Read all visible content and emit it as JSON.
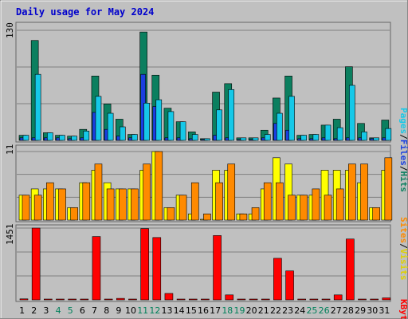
{
  "title": "Daily usage for May 2024",
  "colors": {
    "hits": "#0b7f5f",
    "files": "#1a3fe0",
    "pages": "#15c8e8",
    "visits": "#ffff00",
    "sites": "#ff8a00",
    "kbytes": "#ff0000",
    "weekend": "#00805a",
    "title": "#0000cc",
    "panel": "#c0c0c0"
  },
  "right_labels": {
    "top": {
      "pages": "Pages",
      "files": "Files",
      "hits": "Hits",
      "sep": "/"
    },
    "mid": {
      "sites": "Sites",
      "visits": "Visits",
      "sep": "/"
    },
    "bottom": {
      "kbytes": "KBytes"
    }
  },
  "chart_data": {
    "type": "bar",
    "title": "Daily usage for May 2024",
    "categories": [
      "1",
      "2",
      "3",
      "4",
      "5",
      "6",
      "7",
      "8",
      "9",
      "10",
      "11",
      "12",
      "13",
      "14",
      "15",
      "16",
      "17",
      "18",
      "19",
      "20",
      "21",
      "22",
      "23",
      "24",
      "25",
      "26",
      "27",
      "28",
      "29",
      "30",
      "31"
    ],
    "weekend_days": [
      "4",
      "5",
      "11",
      "12",
      "18",
      "19",
      "25",
      "26"
    ],
    "panels": [
      {
        "name": "hits-files-pages",
        "ymax_label": "130",
        "ylim": [
          0,
          130
        ],
        "grid": true,
        "series": [
          {
            "name": "Hits",
            "color_key": "hits",
            "values": [
              6,
              118,
              9,
              6,
              5,
              13,
              76,
              43,
              25,
              7,
              128,
              77,
              38,
              22,
              10,
              2,
              57,
              67,
              3,
              3,
              12,
              50,
              76,
              6,
              7,
              18,
              25,
              87,
              20,
              3,
              24
            ]
          },
          {
            "name": "Files",
            "color_key": "files",
            "values": [
              3,
              3,
              3,
              3,
              2,
              3,
              33,
              13,
              5,
              3,
              78,
              40,
              3,
              3,
              2,
              1,
              6,
              3,
              1,
              1,
              3,
              20,
              12,
              2,
              2,
              3,
              2,
              3,
              3,
              2,
              3
            ]
          },
          {
            "name": "Pages",
            "color_key": "pages",
            "values": [
              6,
              78,
              9,
              6,
              5,
              11,
              52,
              32,
              16,
              7,
              44,
              48,
              34,
              22,
              7,
              2,
              36,
              60,
              3,
              3,
              7,
              32,
              52,
              6,
              7,
              18,
              15,
              65,
              10,
              3,
              14
            ]
          }
        ]
      },
      {
        "name": "visits-sites",
        "ymax_label": "11",
        "ylim": [
          0,
          11
        ],
        "grid": true,
        "series": [
          {
            "name": "Visits",
            "color_key": "visits",
            "values": [
              4,
              5,
              5,
              5,
              2,
              6,
              8,
              6,
              5,
              5,
              8,
              11,
              2,
              4,
              1,
              0,
              8,
              8,
              1,
              1,
              5,
              10,
              9,
              4,
              4,
              8,
              8,
              8,
              6,
              2,
              8
            ]
          },
          {
            "name": "Sites",
            "color_key": "sites",
            "values": [
              4,
              4,
              6,
              5,
              2,
              6,
              9,
              5,
              5,
              5,
              9,
              11,
              2,
              4,
              6,
              1,
              6,
              9,
              1,
              2,
              6,
              6,
              4,
              4,
              5,
              4,
              5,
              9,
              9,
              2,
              10
            ]
          }
        ]
      },
      {
        "name": "kbytes",
        "ymax_label": "1451",
        "ylim": [
          0,
          1451
        ],
        "grid": true,
        "series": [
          {
            "name": "KBytes",
            "color_key": "kbytes",
            "values": [
              20,
              1451,
              15,
              15,
              15,
              15,
              1280,
              15,
              30,
              15,
              1440,
              1260,
              130,
              15,
              15,
              15,
              1300,
              100,
              15,
              15,
              15,
              840,
              585,
              15,
              15,
              15,
              100,
              1230,
              15,
              15,
              40
            ]
          }
        ]
      }
    ]
  }
}
